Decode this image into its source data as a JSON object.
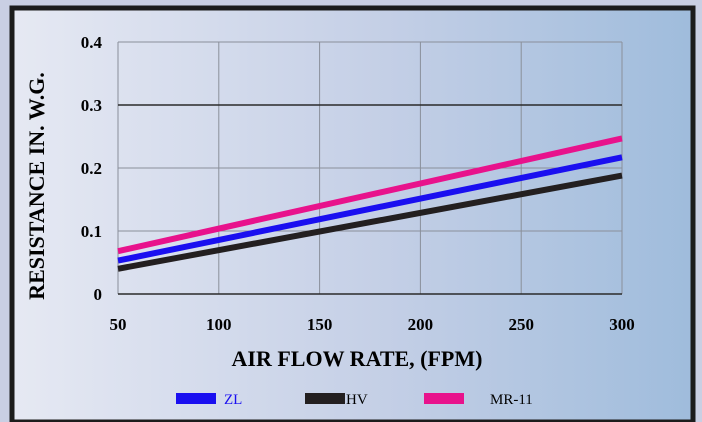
{
  "chart_data": {
    "type": "line",
    "title": "",
    "xlabel": "AIR FLOW RATE, (FPM)",
    "ylabel": "RESISTANCE IN. W.G.",
    "xlim": [
      50,
      300
    ],
    "ylim": [
      0,
      0.4
    ],
    "x_ticks": [
      50,
      100,
      150,
      200,
      250,
      300
    ],
    "x_tick_labels": [
      "50",
      "100",
      "150",
      "200",
      "250",
      "300"
    ],
    "y_ticks": [
      0,
      0.1,
      0.2,
      0.3,
      0.4
    ],
    "y_tick_labels": [
      "0",
      "0.1",
      "0.2",
      "0.3",
      "0.4"
    ],
    "grid": true,
    "legend_position": "bottom",
    "series": [
      {
        "name": "ZL",
        "color": "#1a0ff0",
        "x": [
          50,
          300
        ],
        "y": [
          0.053,
          0.217
        ]
      },
      {
        "name": "HV",
        "color": "#231f20",
        "x": [
          50,
          300
        ],
        "y": [
          0.04,
          0.188
        ]
      },
      {
        "name": "MR-11",
        "color": "#e8128c",
        "x": [
          50,
          300
        ],
        "y": [
          0.068,
          0.247
        ]
      }
    ],
    "colors": {
      "frame": "#1c1c1c",
      "background_left": "#e3e7f2",
      "background_right": "#a6c0de",
      "zl_label_text": "#1a0ff0",
      "text": "#000000"
    }
  }
}
